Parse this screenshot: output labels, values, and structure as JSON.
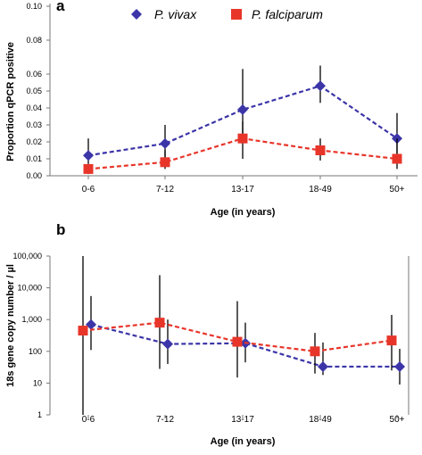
{
  "colors": {
    "vivax": "#3c35a8",
    "falciparum": "#e8352a",
    "errorbar": "#000000",
    "axis": "#777777"
  },
  "legend": [
    "P. vivax",
    "P. falciparum"
  ],
  "chart_data": [
    {
      "panel": "a",
      "type": "line",
      "categories": [
        "0-6",
        "7-12",
        "13-17",
        "18-49",
        "50+"
      ],
      "xlabel": "Age (in years)",
      "ylabel": "Proportion qPCR positive",
      "ylim": [
        0,
        0.1
      ],
      "yticks": [
        "0.00",
        "0.01",
        "0.02",
        "0.03",
        "0.04",
        "0.05",
        "0.06",
        "0.08",
        "0.10"
      ],
      "ytick_values": [
        0,
        0.01,
        0.02,
        0.03,
        0.04,
        0.05,
        0.06,
        0.08,
        0.1
      ],
      "scale_note": "broken linear axis: 0.00-0.06 evenly spaced, 0.08 and 0.10 compressed above",
      "series": [
        {
          "name": "P. vivax",
          "marker": "diamond",
          "values": [
            0.012,
            0.019,
            0.039,
            0.053,
            0.022
          ],
          "error_low": [
            0.007,
            0.011,
            0.025,
            0.043,
            0.013
          ],
          "error_high": [
            0.022,
            0.03,
            0.063,
            0.065,
            0.037
          ]
        },
        {
          "name": "P. falciparum",
          "marker": "square",
          "values": [
            0.004,
            0.008,
            0.022,
            0.015,
            0.01
          ],
          "error_low": [
            0.001,
            0.004,
            0.01,
            0.009,
            0.004
          ],
          "error_high": [
            0.007,
            0.015,
            0.032,
            0.022,
            0.022
          ]
        }
      ]
    },
    {
      "panel": "b",
      "type": "line",
      "categories": [
        "0-6",
        "7-12",
        "13-17",
        "18-49",
        "50+"
      ],
      "xlabel": "Age (in years)",
      "ylabel": "18s gene copy number / µl",
      "yscale": "log",
      "ylim": [
        1,
        100000
      ],
      "yticks": [
        "1",
        "10",
        "100",
        "1,000",
        "10,000",
        "100,000"
      ],
      "ytick_values": [
        1,
        10,
        100,
        1000,
        10000,
        100000
      ],
      "series": [
        {
          "name": "P. vivax",
          "marker": "diamond",
          "values": [
            700,
            170,
            180,
            33,
            33
          ],
          "error_low": [
            110,
            40,
            45,
            18,
            9
          ],
          "error_high": [
            5500,
            1000,
            800,
            190,
            120
          ]
        },
        {
          "name": "P. falciparum",
          "marker": "square",
          "values": [
            450,
            800,
            200,
            100,
            220
          ],
          "error_low": [
            1,
            28,
            15,
            20,
            25
          ],
          "error_high": [
            100000,
            25000,
            3800,
            380,
            1400
          ]
        }
      ]
    }
  ]
}
